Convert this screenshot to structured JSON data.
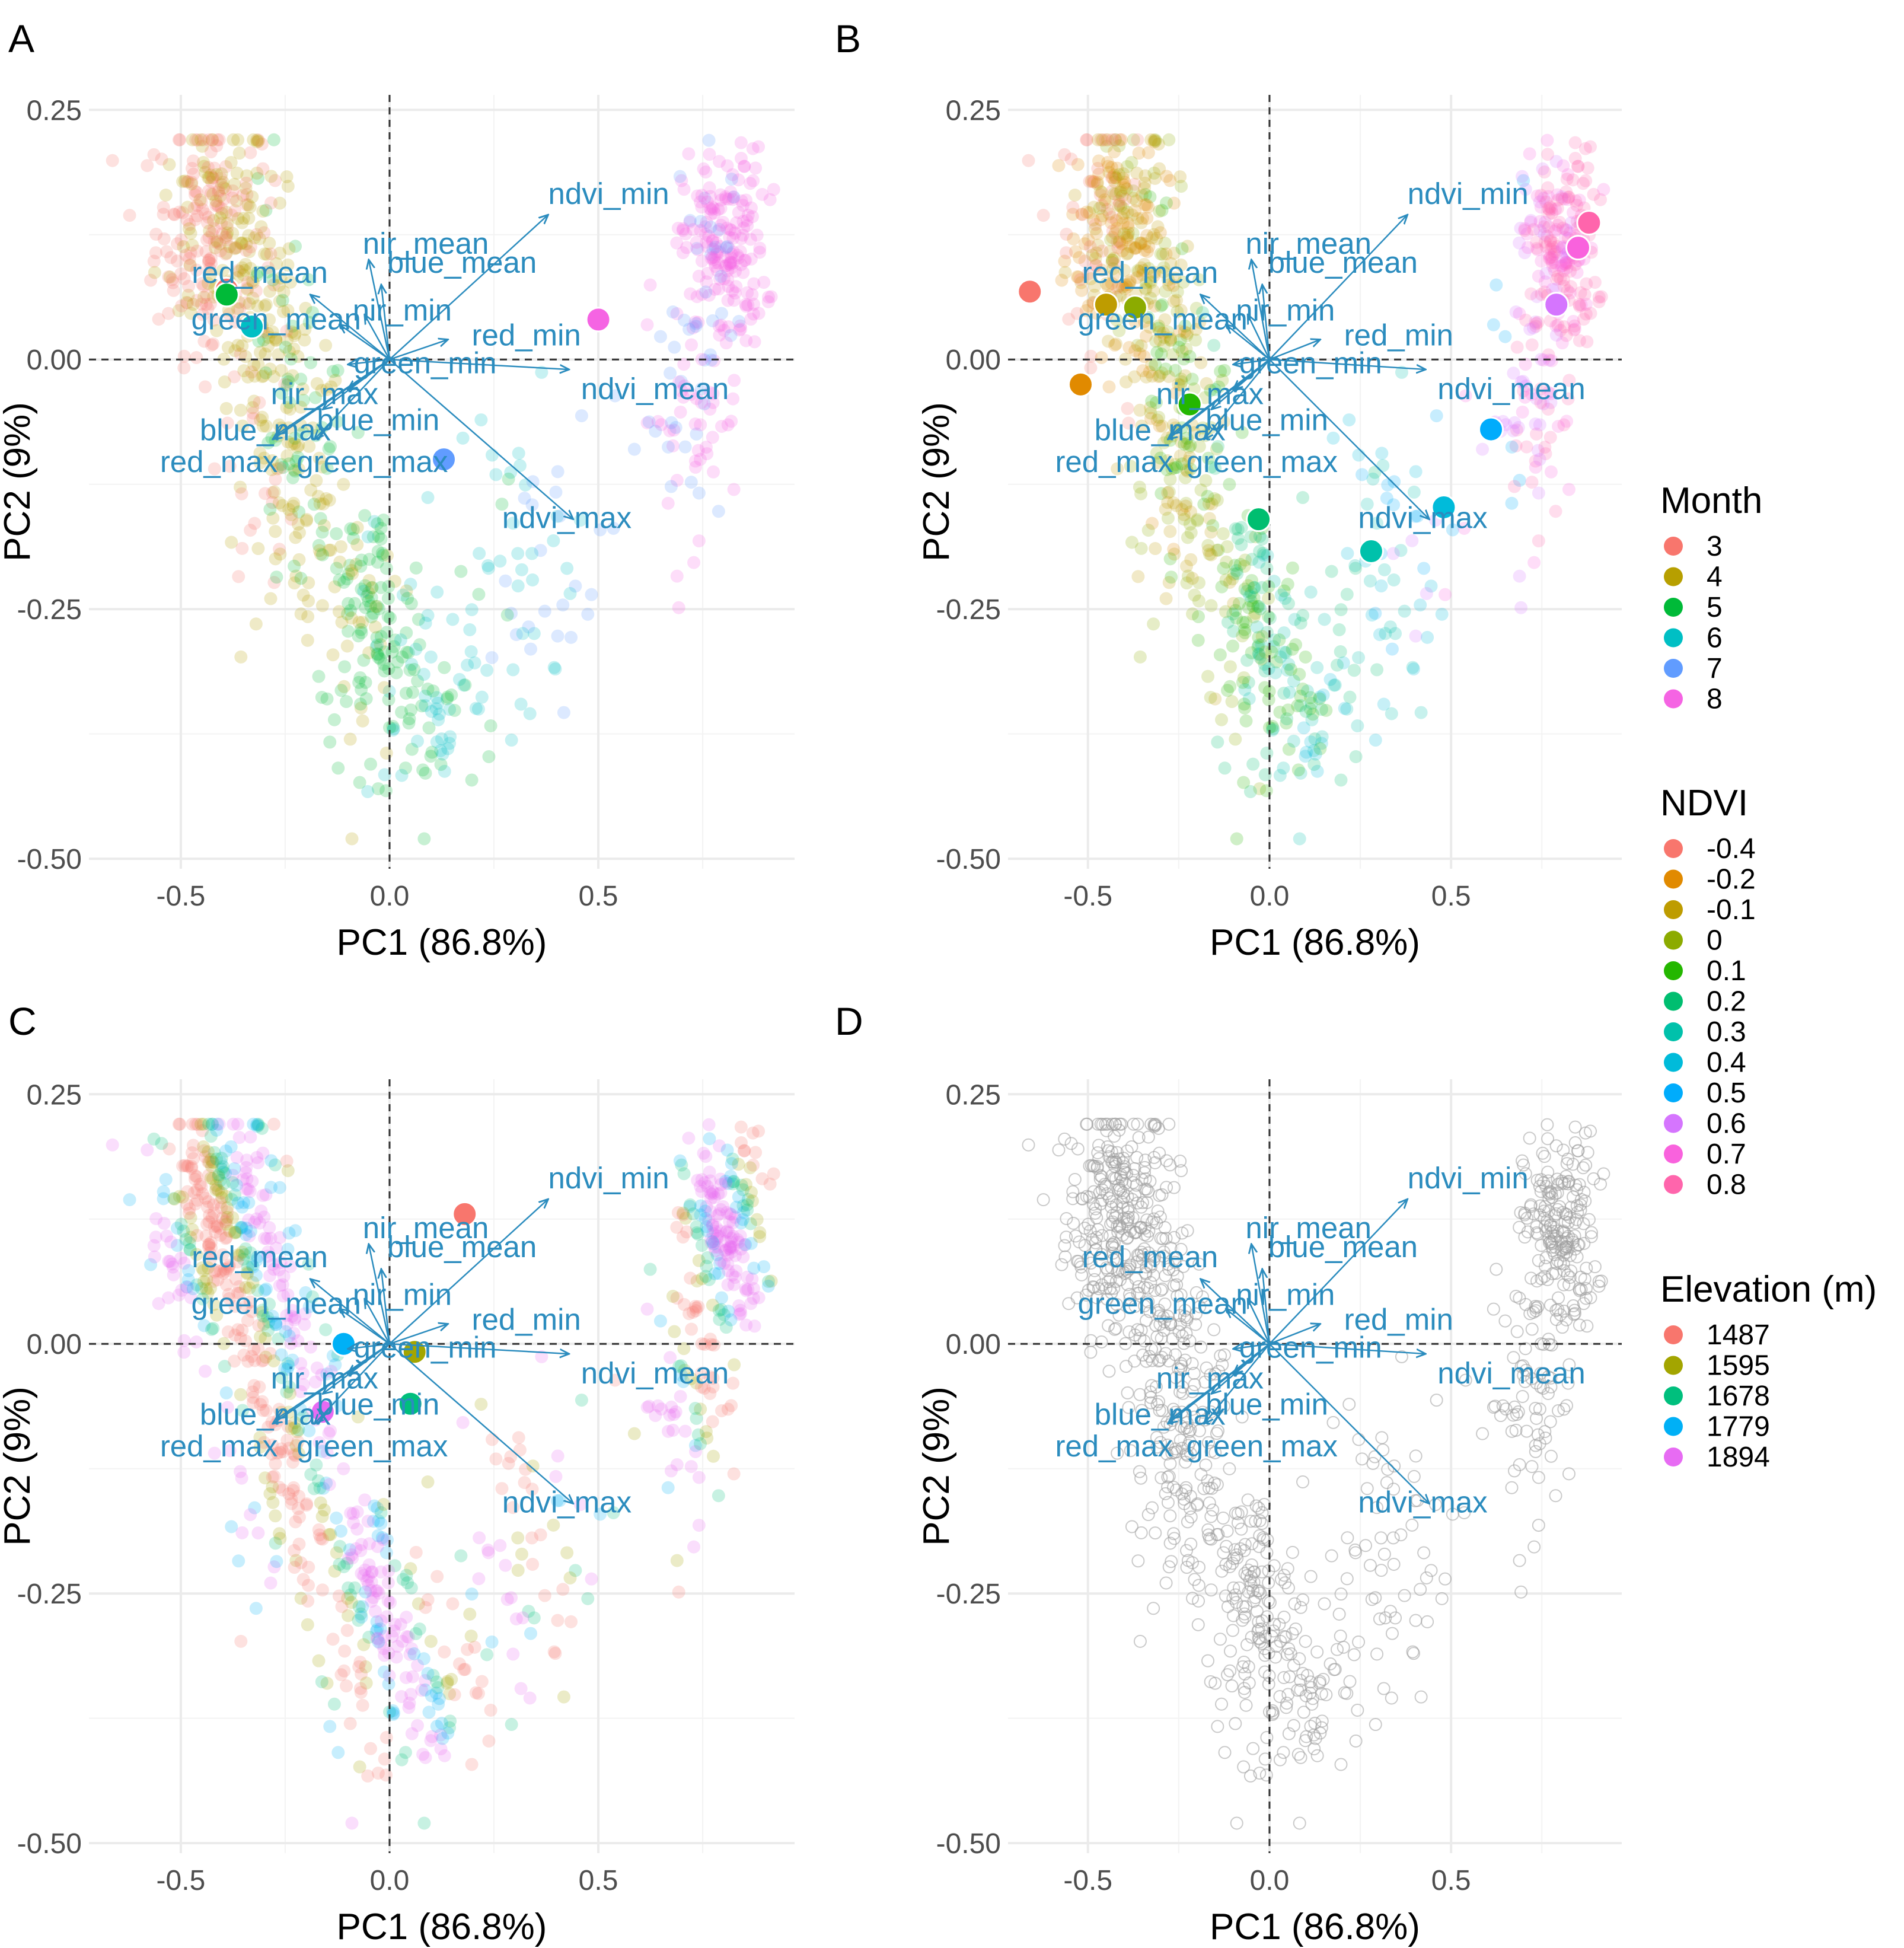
{
  "chart_data": {
    "type": "scatter",
    "subtype": "PCA biplot",
    "x_label": "PC1 (86.8%)",
    "y_label": "PC2 (9%)",
    "xlim": [
      -0.72,
      0.97
    ],
    "ylim": [
      -0.51,
      0.265
    ],
    "x_ticks": [
      -0.5,
      0.0,
      0.5
    ],
    "x_tick_labels": [
      "-0.5",
      "0.0",
      "0.5"
    ],
    "y_ticks": [
      0.25,
      0.0,
      -0.25,
      -0.5
    ],
    "y_tick_labels": [
      "0.25",
      "0.00",
      "-0.25",
      "-0.50"
    ],
    "grid": true,
    "reference_lines": "dashed lines at x=0 and y=0",
    "loadings": [
      {
        "name": "ndvi_min",
        "x": 0.38,
        "y": 0.145
      },
      {
        "name": "nir_mean",
        "x": -0.05,
        "y": 0.1
      },
      {
        "name": "red_mean",
        "x": -0.19,
        "y": 0.065
      },
      {
        "name": "blue_mean",
        "x": -0.02,
        "y": 0.075
      },
      {
        "name": "green_mean",
        "x": -0.12,
        "y": 0.035
      },
      {
        "name": "nir_min",
        "x": -0.06,
        "y": 0.045
      },
      {
        "name": "red_min",
        "x": 0.14,
        "y": 0.02
      },
      {
        "name": "green_min",
        "x": -0.1,
        "y": -0.005
      },
      {
        "name": "nir_max",
        "x": -0.1,
        "y": -0.03
      },
      {
        "name": "blue_min",
        "x": -0.16,
        "y": -0.05
      },
      {
        "name": "ndvi_mean",
        "x": 0.43,
        "y": -0.01
      },
      {
        "name": "blue_max",
        "x": -0.27,
        "y": -0.075
      },
      {
        "name": "red_max",
        "x": -0.28,
        "y": -0.08
      },
      {
        "name": "green_max",
        "x": -0.18,
        "y": -0.08
      },
      {
        "name": "ndvi_max",
        "x": 0.44,
        "y": -0.16
      }
    ],
    "panels": [
      {
        "label": "A",
        "color_by": "Month",
        "centroids": [
          {
            "group": "3",
            "x": -0.39,
            "y": 0.07
          },
          {
            "group": "5",
            "x": -0.39,
            "y": 0.065
          },
          {
            "group": "6",
            "x": -0.33,
            "y": 0.033
          },
          {
            "group": "7",
            "x": 0.13,
            "y": -0.1
          },
          {
            "group": "8",
            "x": 0.5,
            "y": 0.04
          }
        ]
      },
      {
        "label": "B",
        "color_by": "NDVI",
        "centroids": [
          {
            "group": "-0.4",
            "x": -0.66,
            "y": 0.068
          },
          {
            "group": "-0.2",
            "x": -0.52,
            "y": -0.025
          },
          {
            "group": "-0.1",
            "x": -0.45,
            "y": 0.055
          },
          {
            "group": "0",
            "x": -0.37,
            "y": 0.052
          },
          {
            "group": "0.1",
            "x": -0.22,
            "y": -0.045
          },
          {
            "group": "0.2",
            "x": -0.03,
            "y": -0.16
          },
          {
            "group": "0.3",
            "x": 0.28,
            "y": -0.192
          },
          {
            "group": "0.4",
            "x": 0.48,
            "y": -0.148
          },
          {
            "group": "0.5",
            "x": 0.61,
            "y": -0.07
          },
          {
            "group": "0.6",
            "x": 0.79,
            "y": 0.055
          },
          {
            "group": "0.7",
            "x": 0.85,
            "y": 0.112
          },
          {
            "group": "0.8",
            "x": 0.88,
            "y": 0.137
          }
        ]
      },
      {
        "label": "C",
        "color_by": "Elevation (m)",
        "centroids": [
          {
            "group": "1487",
            "x": 0.18,
            "y": 0.13
          },
          {
            "group": "1595",
            "x": 0.06,
            "y": -0.008
          },
          {
            "group": "1678",
            "x": 0.05,
            "y": -0.06
          },
          {
            "group": "1779",
            "x": -0.11,
            "y": 0.0
          },
          {
            "group": "1894",
            "x": -0.16,
            "y": -0.068
          }
        ]
      },
      {
        "label": "D",
        "color_by": "none",
        "centroids": []
      }
    ],
    "legends": [
      {
        "title": "Month",
        "items": [
          {
            "label": "3",
            "color": "#F8766D"
          },
          {
            "label": "4",
            "color": "#B79F00"
          },
          {
            "label": "5",
            "color": "#00BA38"
          },
          {
            "label": "6",
            "color": "#00BFC4"
          },
          {
            "label": "7",
            "color": "#619CFF"
          },
          {
            "label": "8",
            "color": "#F564E3"
          }
        ]
      },
      {
        "title": "NDVI",
        "items": [
          {
            "label": "-0.4",
            "color": "#F8766D"
          },
          {
            "label": "-0.2",
            "color": "#E18A00"
          },
          {
            "label": "-0.1",
            "color": "#BE9C00"
          },
          {
            "label": "0",
            "color": "#8CAB00"
          },
          {
            "label": "0.1",
            "color": "#24B700"
          },
          {
            "label": "0.2",
            "color": "#00BE70"
          },
          {
            "label": "0.3",
            "color": "#00C1AB"
          },
          {
            "label": "0.4",
            "color": "#00BBDA"
          },
          {
            "label": "0.5",
            "color": "#00ACFC"
          },
          {
            "label": "0.6",
            "color": "#D575FE"
          },
          {
            "label": "0.7",
            "color": "#F962DD"
          },
          {
            "label": "0.8",
            "color": "#FF65AC"
          }
        ]
      },
      {
        "title": "Elevation (m)",
        "items": [
          {
            "label": "1487",
            "color": "#F8766D"
          },
          {
            "label": "1595",
            "color": "#A3A500"
          },
          {
            "label": "1678",
            "color": "#00BF7D"
          },
          {
            "label": "1779",
            "color": "#00B0F6"
          },
          {
            "label": "1894",
            "color": "#E76BF3"
          }
        ]
      }
    ],
    "colors": {
      "loading_arrow": "#2b8cbe",
      "gridline": "#ebebeb",
      "reference_line": "#333333",
      "unlabeled_point_outline": "#9e9e9e"
    }
  }
}
